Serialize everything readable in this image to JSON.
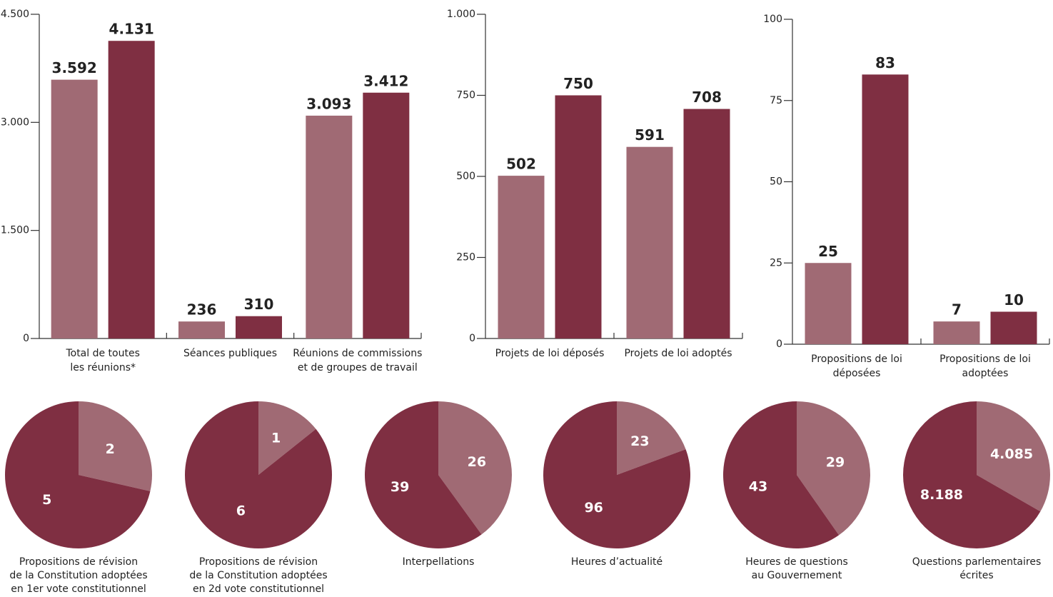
{
  "chart_data": [
    {
      "type": "bar",
      "categories": [
        [
          "Total de toutes",
          "les réunions*"
        ],
        [
          "Séances publiques"
        ],
        [
          "Réunions de commissions",
          "et de groupes de travail"
        ]
      ],
      "series": [
        {
          "color": "#a06a74",
          "values": [
            3592,
            236,
            3093
          ],
          "value_labels": [
            "3.592",
            "236",
            "3.093"
          ]
        },
        {
          "color": "#7f2f42",
          "values": [
            4131,
            310,
            3412
          ],
          "value_labels": [
            "4.131",
            "310",
            "3.412"
          ]
        }
      ],
      "ylim": [
        0,
        4500
      ],
      "yticks": [
        0,
        {
          "value": 1500,
          "label": "1.500"
        },
        {
          "value": 3000,
          "label": "3.000"
        },
        {
          "value": 4500,
          "label": "4.500"
        }
      ]
    },
    {
      "type": "bar",
      "categories": [
        [
          "Projets de loi déposés"
        ],
        [
          "Projets de loi adoptés"
        ]
      ],
      "series": [
        {
          "color": "#a06a74",
          "values": [
            502,
            591
          ]
        },
        {
          "color": "#7f2f42",
          "values": [
            750,
            708
          ]
        }
      ],
      "ylim": [
        0,
        1000
      ],
      "yticks": [
        0,
        250,
        500,
        750,
        {
          "value": 1000,
          "label": "1.000"
        }
      ]
    },
    {
      "type": "bar",
      "categories": [
        [
          "Propositions de loi",
          "déposées"
        ],
        [
          "Propositions de loi",
          "adoptées"
        ]
      ],
      "series": [
        {
          "color": "#a06a74",
          "values": [
            25,
            7
          ]
        },
        {
          "color": "#7f2f42",
          "values": [
            83,
            10
          ]
        }
      ],
      "ylim": [
        0,
        100
      ],
      "yticks": [
        0,
        25,
        50,
        75,
        100
      ]
    },
    {
      "type": "pie",
      "title": [
        "Propositions de révision",
        "de la Constitution adoptées",
        "en 1er vote constitutionnel"
      ],
      "values": [
        2,
        5
      ],
      "colors": [
        "#a06a74",
        "#7f2f42"
      ]
    },
    {
      "type": "pie",
      "title": [
        "Propositions de révision",
        "de la Constitution adoptées",
        "en 2d vote constitutionnel"
      ],
      "values": [
        1,
        6
      ],
      "colors": [
        "#a06a74",
        "#7f2f42"
      ]
    },
    {
      "type": "pie",
      "title": [
        "Interpellations"
      ],
      "values": [
        26,
        39
      ],
      "colors": [
        "#a06a74",
        "#7f2f42"
      ]
    },
    {
      "type": "pie",
      "title": [
        "Heures d’actualité"
      ],
      "values": [
        23,
        96
      ],
      "colors": [
        "#a06a74",
        "#7f2f42"
      ]
    },
    {
      "type": "pie",
      "title": [
        "Heures de questions",
        "au Gouvernement"
      ],
      "values": [
        29,
        43
      ],
      "colors": [
        "#a06a74",
        "#7f2f42"
      ]
    },
    {
      "type": "pie",
      "title": [
        "Questions parlementaires",
        "écrites"
      ],
      "values": [
        4085,
        8188
      ],
      "value_labels": [
        "4.085",
        "8.188"
      ],
      "colors": [
        "#a06a74",
        "#7f2f42"
      ]
    }
  ]
}
